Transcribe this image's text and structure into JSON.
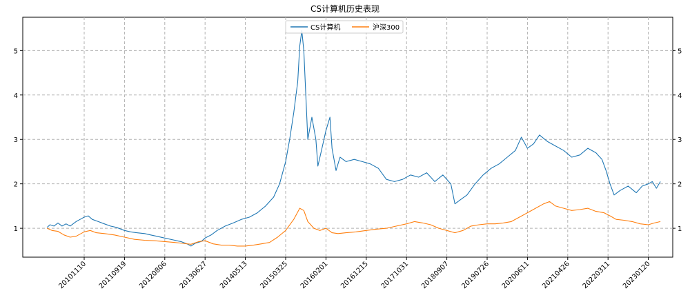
{
  "chart_data": {
    "type": "line",
    "title": "CS计算机历史表现",
    "xlabel": "",
    "ylabel": "",
    "grid": true,
    "legend_position": "top-center",
    "y_axis_right": true,
    "ylim": [
      0.35,
      5.75
    ],
    "yticks": [
      1,
      2,
      3,
      4,
      5
    ],
    "x_tick_labels": [
      "20101110",
      "20110919",
      "20120806",
      "20130627",
      "20140513",
      "20150325",
      "20160201",
      "20161215",
      "20171031",
      "20180907",
      "20190726",
      "20200611",
      "20210426",
      "20220311",
      "20230120"
    ],
    "x_range": [
      -0.9,
      14.95
    ],
    "series": [
      {
        "name": "CS计算机",
        "color": "#1f77b4",
        "points": [
          [
            -0.92,
            1.02
          ],
          [
            -0.85,
            1.08
          ],
          [
            -0.75,
            1.05
          ],
          [
            -0.65,
            1.12
          ],
          [
            -0.55,
            1.05
          ],
          [
            -0.45,
            1.1
          ],
          [
            -0.35,
            1.05
          ],
          [
            -0.2,
            1.15
          ],
          [
            -0.1,
            1.2
          ],
          [
            0.0,
            1.25
          ],
          [
            0.1,
            1.28
          ],
          [
            0.2,
            1.2
          ],
          [
            0.35,
            1.15
          ],
          [
            0.5,
            1.1
          ],
          [
            0.65,
            1.05
          ],
          [
            0.8,
            1.02
          ],
          [
            1.0,
            0.95
          ],
          [
            1.15,
            0.92
          ],
          [
            1.3,
            0.9
          ],
          [
            1.5,
            0.88
          ],
          [
            1.65,
            0.85
          ],
          [
            1.8,
            0.82
          ],
          [
            2.0,
            0.78
          ],
          [
            2.2,
            0.74
          ],
          [
            2.4,
            0.7
          ],
          [
            2.55,
            0.65
          ],
          [
            2.65,
            0.6
          ],
          [
            2.75,
            0.66
          ],
          [
            2.9,
            0.7
          ],
          [
            3.0,
            0.78
          ],
          [
            3.15,
            0.85
          ],
          [
            3.3,
            0.95
          ],
          [
            3.5,
            1.05
          ],
          [
            3.7,
            1.12
          ],
          [
            3.9,
            1.2
          ],
          [
            4.1,
            1.25
          ],
          [
            4.3,
            1.35
          ],
          [
            4.5,
            1.5
          ],
          [
            4.7,
            1.7
          ],
          [
            4.85,
            2.0
          ],
          [
            5.0,
            2.5
          ],
          [
            5.1,
            3.0
          ],
          [
            5.2,
            3.6
          ],
          [
            5.3,
            4.3
          ],
          [
            5.35,
            5.1
          ],
          [
            5.4,
            5.45
          ],
          [
            5.45,
            5.0
          ],
          [
            5.5,
            4.0
          ],
          [
            5.55,
            3.0
          ],
          [
            5.65,
            3.5
          ],
          [
            5.75,
            3.0
          ],
          [
            5.8,
            2.4
          ],
          [
            5.9,
            2.8
          ],
          [
            6.0,
            3.2
          ],
          [
            6.1,
            3.5
          ],
          [
            6.15,
            2.8
          ],
          [
            6.25,
            2.3
          ],
          [
            6.35,
            2.6
          ],
          [
            6.5,
            2.5
          ],
          [
            6.7,
            2.55
          ],
          [
            6.9,
            2.5
          ],
          [
            7.1,
            2.45
          ],
          [
            7.3,
            2.35
          ],
          [
            7.5,
            2.1
          ],
          [
            7.7,
            2.05
          ],
          [
            7.9,
            2.1
          ],
          [
            8.1,
            2.2
          ],
          [
            8.3,
            2.15
          ],
          [
            8.5,
            2.25
          ],
          [
            8.7,
            2.05
          ],
          [
            8.9,
            2.2
          ],
          [
            9.1,
            2.0
          ],
          [
            9.2,
            1.55
          ],
          [
            9.35,
            1.65
          ],
          [
            9.5,
            1.75
          ],
          [
            9.7,
            2.0
          ],
          [
            9.9,
            2.2
          ],
          [
            10.1,
            2.35
          ],
          [
            10.3,
            2.45
          ],
          [
            10.5,
            2.6
          ],
          [
            10.7,
            2.75
          ],
          [
            10.85,
            3.05
          ],
          [
            11.0,
            2.8
          ],
          [
            11.15,
            2.9
          ],
          [
            11.3,
            3.1
          ],
          [
            11.5,
            2.95
          ],
          [
            11.7,
            2.85
          ],
          [
            11.9,
            2.75
          ],
          [
            12.1,
            2.6
          ],
          [
            12.3,
            2.65
          ],
          [
            12.5,
            2.8
          ],
          [
            12.7,
            2.7
          ],
          [
            12.85,
            2.55
          ],
          [
            12.95,
            2.3
          ],
          [
            13.05,
            2.0
          ],
          [
            13.15,
            1.75
          ],
          [
            13.3,
            1.85
          ],
          [
            13.5,
            1.95
          ],
          [
            13.7,
            1.8
          ],
          [
            13.85,
            1.95
          ],
          [
            14.0,
            2.0
          ],
          [
            14.1,
            2.05
          ],
          [
            14.2,
            1.9
          ],
          [
            14.3,
            2.05
          ]
        ]
      },
      {
        "name": "沪深300",
        "color": "#ff7f0e",
        "points": [
          [
            -0.92,
            1.0
          ],
          [
            -0.8,
            0.95
          ],
          [
            -0.65,
            0.93
          ],
          [
            -0.5,
            0.85
          ],
          [
            -0.35,
            0.8
          ],
          [
            -0.2,
            0.82
          ],
          [
            0.0,
            0.92
          ],
          [
            0.15,
            0.95
          ],
          [
            0.3,
            0.9
          ],
          [
            0.5,
            0.88
          ],
          [
            0.75,
            0.85
          ],
          [
            1.0,
            0.8
          ],
          [
            1.25,
            0.75
          ],
          [
            1.5,
            0.73
          ],
          [
            1.75,
            0.72
          ],
          [
            2.0,
            0.7
          ],
          [
            2.25,
            0.68
          ],
          [
            2.45,
            0.66
          ],
          [
            2.65,
            0.64
          ],
          [
            2.85,
            0.7
          ],
          [
            3.0,
            0.72
          ],
          [
            3.2,
            0.65
          ],
          [
            3.4,
            0.62
          ],
          [
            3.6,
            0.62
          ],
          [
            3.8,
            0.6
          ],
          [
            4.0,
            0.6
          ],
          [
            4.2,
            0.62
          ],
          [
            4.4,
            0.65
          ],
          [
            4.6,
            0.68
          ],
          [
            4.8,
            0.8
          ],
          [
            5.0,
            0.95
          ],
          [
            5.2,
            1.2
          ],
          [
            5.35,
            1.45
          ],
          [
            5.45,
            1.4
          ],
          [
            5.55,
            1.15
          ],
          [
            5.7,
            1.0
          ],
          [
            5.85,
            0.95
          ],
          [
            6.0,
            1.0
          ],
          [
            6.15,
            0.9
          ],
          [
            6.3,
            0.88
          ],
          [
            6.5,
            0.9
          ],
          [
            6.75,
            0.92
          ],
          [
            7.0,
            0.95
          ],
          [
            7.25,
            0.98
          ],
          [
            7.5,
            1.0
          ],
          [
            7.75,
            1.05
          ],
          [
            8.0,
            1.1
          ],
          [
            8.2,
            1.15
          ],
          [
            8.4,
            1.12
          ],
          [
            8.6,
            1.08
          ],
          [
            8.8,
            1.0
          ],
          [
            9.0,
            0.95
          ],
          [
            9.2,
            0.9
          ],
          [
            9.4,
            0.95
          ],
          [
            9.6,
            1.05
          ],
          [
            9.8,
            1.08
          ],
          [
            10.0,
            1.1
          ],
          [
            10.2,
            1.1
          ],
          [
            10.4,
            1.12
          ],
          [
            10.6,
            1.15
          ],
          [
            10.8,
            1.25
          ],
          [
            11.0,
            1.35
          ],
          [
            11.2,
            1.45
          ],
          [
            11.4,
            1.55
          ],
          [
            11.55,
            1.6
          ],
          [
            11.7,
            1.5
          ],
          [
            11.9,
            1.45
          ],
          [
            12.1,
            1.4
          ],
          [
            12.3,
            1.42
          ],
          [
            12.5,
            1.45
          ],
          [
            12.7,
            1.38
          ],
          [
            12.9,
            1.35
          ],
          [
            13.05,
            1.28
          ],
          [
            13.2,
            1.2
          ],
          [
            13.4,
            1.18
          ],
          [
            13.6,
            1.15
          ],
          [
            13.8,
            1.1
          ],
          [
            14.0,
            1.08
          ],
          [
            14.15,
            1.12
          ],
          [
            14.3,
            1.15
          ]
        ]
      }
    ]
  }
}
